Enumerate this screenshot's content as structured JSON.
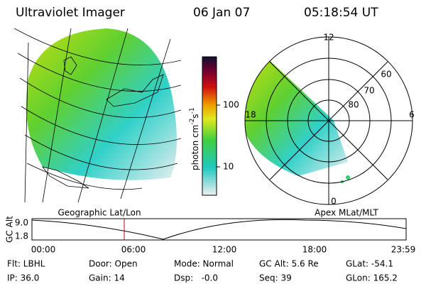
{
  "header": {
    "title": "Ultraviolet Imager",
    "date": "06 Jan 07",
    "time": "05:18:54 UT"
  },
  "colorbar": {
    "label": [
      "photon cm",
      "-2",
      "s",
      "-1"
    ],
    "ticks": [
      "100",
      "10"
    ]
  },
  "polar": {
    "noon": "12",
    "lat60": "60",
    "lat70": "70",
    "lat80": "80",
    "dusk": "18",
    "dawn": "6",
    "midnight": "0"
  },
  "panels": {
    "left": "Geographic Lat/Lon",
    "right": "Apex MLat/MLT"
  },
  "timeline": {
    "axis_label": "GC Alt",
    "y_labels": [
      "9.0",
      "1.8"
    ],
    "x_labels": [
      "00:00",
      "06:00",
      "12:00",
      "18:00",
      "23:59"
    ]
  },
  "info": [
    [
      "Flt: LBHL",
      "Door: Open",
      "Mode: Normal",
      "GC Alt: 5.6 Re",
      "GLat: -54.1"
    ],
    [
      "IP: 36.0",
      "Gain: 14",
      "Dsp:   -0.0",
      "Seq: 39",
      "GLon: 165.2"
    ]
  ]
}
